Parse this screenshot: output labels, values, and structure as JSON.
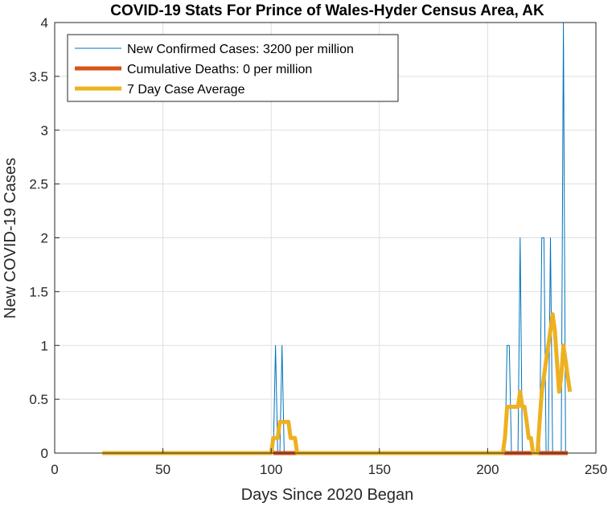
{
  "chart_data": {
    "type": "line",
    "title": "COVID-19 Stats For Prince of Wales-Hyder Census Area, AK",
    "xlabel": "Days Since 2020 Began",
    "ylabel": "New COVID-19 Cases",
    "xlim": [
      0,
      250
    ],
    "ylim": [
      0,
      4
    ],
    "xticks": [
      0,
      50,
      100,
      150,
      200,
      250
    ],
    "yticks": [
      0,
      0.5,
      1,
      1.5,
      2,
      2.5,
      3,
      3.5,
      4
    ],
    "xtick_labels": [
      "0",
      "50",
      "100",
      "150",
      "200",
      "250"
    ],
    "ytick_labels": [
      "0",
      "0.5",
      "1",
      "1.5",
      "2",
      "2.5",
      "3",
      "3.5",
      "4"
    ],
    "grid": true,
    "legend_position": "top-left",
    "series": [
      {
        "name": "New Confirmed Cases: 3200 per million",
        "color": "#0072BD",
        "x": [
          22,
          101,
          102,
          103,
          104,
          105,
          106,
          208,
          209,
          210,
          211,
          214,
          215,
          216,
          224,
          225,
          226,
          227,
          228,
          229,
          230,
          231,
          234,
          235,
          236,
          237
        ],
        "y": [
          0,
          0,
          1,
          0,
          0,
          1,
          0,
          0,
          1,
          1,
          0,
          0,
          2,
          0,
          0,
          2,
          2,
          0,
          0,
          2,
          0,
          0,
          0,
          4,
          0,
          0
        ]
      },
      {
        "name": "Cumulative Deaths: 0 per million",
        "color": "#D95319",
        "x": [
          101,
          237
        ],
        "y": [
          0,
          0
        ]
      },
      {
        "name": "7 Day Case Average",
        "color": "#EDB120",
        "x": [
          22,
          100,
          101,
          102,
          103,
          104,
          105,
          106,
          107,
          108,
          109,
          110,
          111,
          112,
          207,
          208,
          209,
          210,
          211,
          212,
          213,
          214,
          215,
          216,
          217,
          218,
          219,
          220,
          221,
          222,
          223,
          224,
          225,
          226,
          227,
          228,
          229,
          230,
          231,
          232,
          233,
          234,
          235,
          236,
          237,
          238
        ],
        "y": [
          0,
          0,
          0.14,
          0.14,
          0.14,
          0.29,
          0.29,
          0.29,
          0.29,
          0.29,
          0.14,
          0.14,
          0.14,
          0,
          0,
          0.14,
          0.43,
          0.43,
          0.43,
          0.43,
          0.43,
          0.43,
          0.57,
          0.43,
          0.43,
          0.29,
          0.14,
          0.14,
          0,
          0,
          0,
          0.29,
          0.57,
          0.71,
          0.86,
          1.0,
          1.14,
          1.29,
          1.14,
          0.86,
          0.57,
          0.71,
          1.0,
          0.86,
          0.71,
          0.57
        ]
      }
    ]
  }
}
